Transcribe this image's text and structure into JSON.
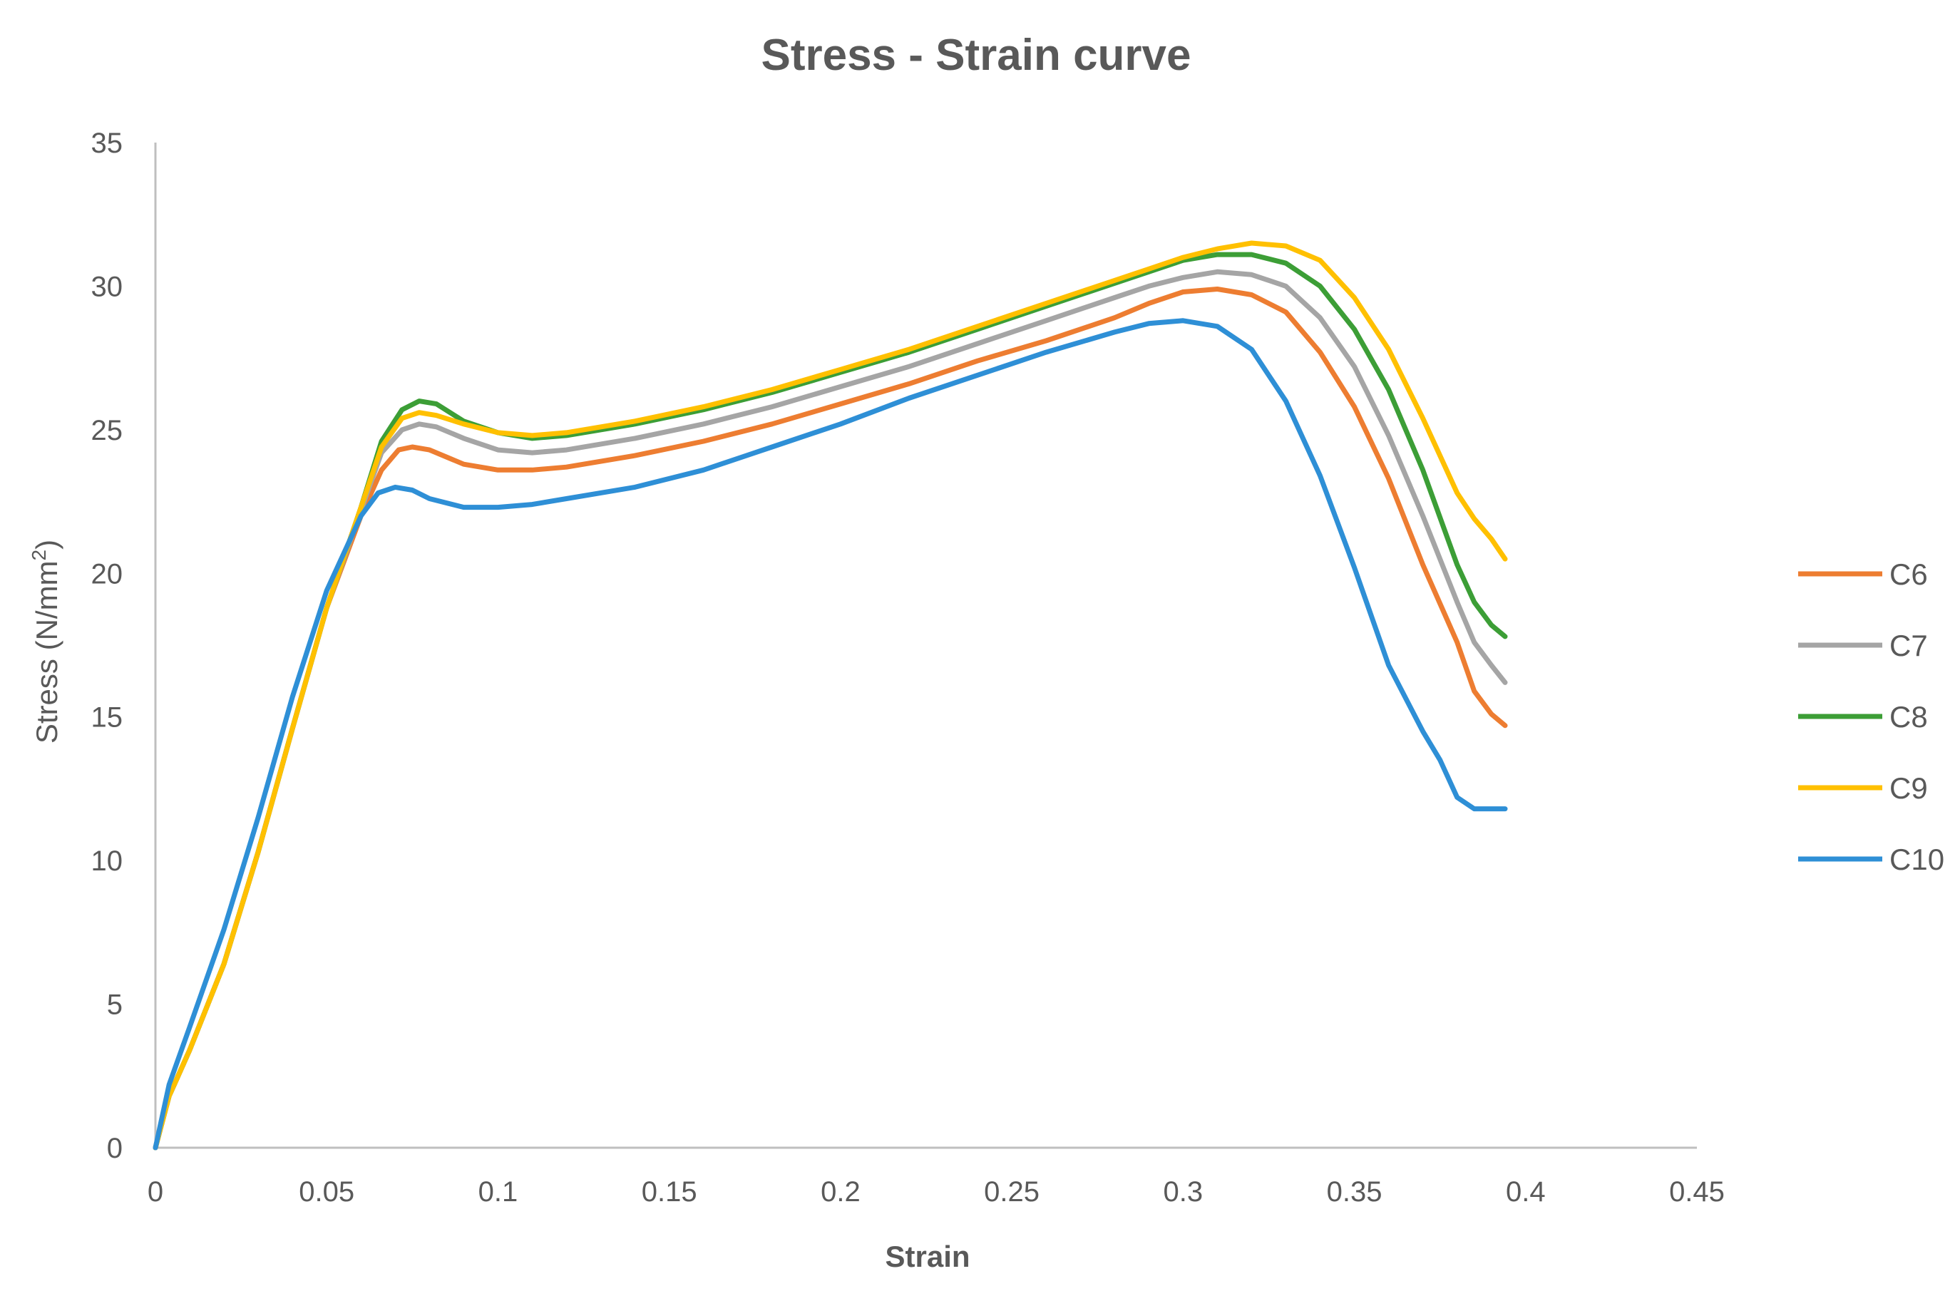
{
  "chart_data": {
    "type": "line",
    "title": "Stress - Strain curve",
    "xlabel": "Strain",
    "ylabel_main": "Stress (N/mm",
    "ylabel_sup": "2",
    "ylabel_close": ")",
    "xlim": [
      0,
      0.45
    ],
    "ylim": [
      0,
      35
    ],
    "x_ticks": [
      "0",
      "0.05",
      "0.1",
      "0.15",
      "0.2",
      "0.25",
      "0.3",
      "0.35",
      "0.4",
      "0.45"
    ],
    "x_tick_values": [
      0,
      0.05,
      0.1,
      0.15,
      0.2,
      0.25,
      0.3,
      0.35,
      0.4,
      0.45
    ],
    "y_ticks": [
      "0",
      "5",
      "10",
      "15",
      "20",
      "25",
      "30",
      "35"
    ],
    "y_tick_values": [
      0,
      5,
      10,
      15,
      20,
      25,
      30,
      35
    ],
    "grid": false,
    "legend_position": "right",
    "series": [
      {
        "name": "C6",
        "color": "#ED7D31",
        "points": [
          [
            0,
            0
          ],
          [
            0.004,
            1.8
          ],
          [
            0.01,
            3.4
          ],
          [
            0.02,
            6.4
          ],
          [
            0.03,
            10.3
          ],
          [
            0.04,
            14.6
          ],
          [
            0.05,
            18.8
          ],
          [
            0.06,
            22.0
          ],
          [
            0.066,
            23.6
          ],
          [
            0.071,
            24.3
          ],
          [
            0.075,
            24.4
          ],
          [
            0.08,
            24.3
          ],
          [
            0.09,
            23.8
          ],
          [
            0.1,
            23.6
          ],
          [
            0.11,
            23.6
          ],
          [
            0.12,
            23.7
          ],
          [
            0.14,
            24.1
          ],
          [
            0.16,
            24.6
          ],
          [
            0.18,
            25.2
          ],
          [
            0.2,
            25.9
          ],
          [
            0.22,
            26.6
          ],
          [
            0.24,
            27.4
          ],
          [
            0.26,
            28.1
          ],
          [
            0.28,
            28.9
          ],
          [
            0.29,
            29.4
          ],
          [
            0.3,
            29.8
          ],
          [
            0.31,
            29.9
          ],
          [
            0.32,
            29.7
          ],
          [
            0.33,
            29.1
          ],
          [
            0.34,
            27.7
          ],
          [
            0.35,
            25.8
          ],
          [
            0.36,
            23.3
          ],
          [
            0.37,
            20.3
          ],
          [
            0.38,
            17.6
          ],
          [
            0.385,
            15.9
          ],
          [
            0.39,
            15.1
          ],
          [
            0.394,
            14.7
          ]
        ]
      },
      {
        "name": "C7",
        "color": "#A5A5A5",
        "points": [
          [
            0,
            0
          ],
          [
            0.004,
            1.8
          ],
          [
            0.01,
            3.4
          ],
          [
            0.02,
            6.4
          ],
          [
            0.03,
            10.3
          ],
          [
            0.04,
            14.6
          ],
          [
            0.05,
            18.8
          ],
          [
            0.06,
            22.2
          ],
          [
            0.066,
            24.2
          ],
          [
            0.072,
            25.0
          ],
          [
            0.077,
            25.2
          ],
          [
            0.082,
            25.1
          ],
          [
            0.09,
            24.7
          ],
          [
            0.1,
            24.3
          ],
          [
            0.11,
            24.2
          ],
          [
            0.12,
            24.3
          ],
          [
            0.14,
            24.7
          ],
          [
            0.16,
            25.2
          ],
          [
            0.18,
            25.8
          ],
          [
            0.2,
            26.5
          ],
          [
            0.22,
            27.2
          ],
          [
            0.24,
            28.0
          ],
          [
            0.26,
            28.8
          ],
          [
            0.28,
            29.6
          ],
          [
            0.29,
            30.0
          ],
          [
            0.3,
            30.3
          ],
          [
            0.31,
            30.5
          ],
          [
            0.32,
            30.4
          ],
          [
            0.33,
            30.0
          ],
          [
            0.34,
            28.9
          ],
          [
            0.35,
            27.2
          ],
          [
            0.36,
            24.8
          ],
          [
            0.37,
            22.0
          ],
          [
            0.38,
            19.0
          ],
          [
            0.385,
            17.6
          ],
          [
            0.39,
            16.8
          ],
          [
            0.394,
            16.2
          ]
        ]
      },
      {
        "name": "C8",
        "color": "#3C9E36",
        "points": [
          [
            0,
            0
          ],
          [
            0.004,
            1.8
          ],
          [
            0.01,
            3.4
          ],
          [
            0.02,
            6.4
          ],
          [
            0.03,
            10.3
          ],
          [
            0.04,
            14.6
          ],
          [
            0.05,
            18.8
          ],
          [
            0.06,
            22.3
          ],
          [
            0.066,
            24.6
          ],
          [
            0.072,
            25.7
          ],
          [
            0.077,
            26.0
          ],
          [
            0.082,
            25.9
          ],
          [
            0.09,
            25.3
          ],
          [
            0.1,
            24.9
          ],
          [
            0.11,
            24.7
          ],
          [
            0.12,
            24.8
          ],
          [
            0.14,
            25.2
          ],
          [
            0.16,
            25.7
          ],
          [
            0.18,
            26.3
          ],
          [
            0.2,
            27.0
          ],
          [
            0.22,
            27.7
          ],
          [
            0.24,
            28.5
          ],
          [
            0.26,
            29.3
          ],
          [
            0.28,
            30.1
          ],
          [
            0.29,
            30.5
          ],
          [
            0.3,
            30.9
          ],
          [
            0.31,
            31.1
          ],
          [
            0.32,
            31.1
          ],
          [
            0.33,
            30.8
          ],
          [
            0.34,
            30.0
          ],
          [
            0.35,
            28.5
          ],
          [
            0.36,
            26.4
          ],
          [
            0.37,
            23.6
          ],
          [
            0.38,
            20.3
          ],
          [
            0.385,
            19.0
          ],
          [
            0.39,
            18.2
          ],
          [
            0.394,
            17.8
          ]
        ]
      },
      {
        "name": "C9",
        "color": "#FFC000",
        "points": [
          [
            0,
            0
          ],
          [
            0.004,
            1.8
          ],
          [
            0.01,
            3.4
          ],
          [
            0.02,
            6.4
          ],
          [
            0.03,
            10.3
          ],
          [
            0.04,
            14.6
          ],
          [
            0.05,
            18.8
          ],
          [
            0.06,
            22.3
          ],
          [
            0.066,
            24.4
          ],
          [
            0.072,
            25.4
          ],
          [
            0.077,
            25.6
          ],
          [
            0.082,
            25.5
          ],
          [
            0.09,
            25.2
          ],
          [
            0.1,
            24.9
          ],
          [
            0.11,
            24.8
          ],
          [
            0.12,
            24.9
          ],
          [
            0.14,
            25.3
          ],
          [
            0.16,
            25.8
          ],
          [
            0.18,
            26.4
          ],
          [
            0.2,
            27.1
          ],
          [
            0.22,
            27.8
          ],
          [
            0.24,
            28.6
          ],
          [
            0.26,
            29.4
          ],
          [
            0.28,
            30.2
          ],
          [
            0.29,
            30.6
          ],
          [
            0.3,
            31.0
          ],
          [
            0.31,
            31.3
          ],
          [
            0.32,
            31.5
          ],
          [
            0.33,
            31.4
          ],
          [
            0.34,
            30.9
          ],
          [
            0.35,
            29.6
          ],
          [
            0.36,
            27.8
          ],
          [
            0.37,
            25.4
          ],
          [
            0.38,
            22.8
          ],
          [
            0.385,
            21.9
          ],
          [
            0.39,
            21.2
          ],
          [
            0.394,
            20.5
          ]
        ]
      },
      {
        "name": "C10",
        "color": "#2E8FD6",
        "points": [
          [
            0,
            0
          ],
          [
            0.004,
            2.2
          ],
          [
            0.01,
            4.2
          ],
          [
            0.02,
            7.6
          ],
          [
            0.03,
            11.5
          ],
          [
            0.04,
            15.7
          ],
          [
            0.05,
            19.4
          ],
          [
            0.06,
            22.0
          ],
          [
            0.065,
            22.8
          ],
          [
            0.07,
            23.0
          ],
          [
            0.075,
            22.9
          ],
          [
            0.08,
            22.6
          ],
          [
            0.09,
            22.3
          ],
          [
            0.1,
            22.3
          ],
          [
            0.11,
            22.4
          ],
          [
            0.12,
            22.6
          ],
          [
            0.14,
            23.0
          ],
          [
            0.16,
            23.6
          ],
          [
            0.18,
            24.4
          ],
          [
            0.2,
            25.2
          ],
          [
            0.22,
            26.1
          ],
          [
            0.24,
            26.9
          ],
          [
            0.26,
            27.7
          ],
          [
            0.28,
            28.4
          ],
          [
            0.29,
            28.7
          ],
          [
            0.3,
            28.8
          ],
          [
            0.31,
            28.6
          ],
          [
            0.32,
            27.8
          ],
          [
            0.33,
            26.0
          ],
          [
            0.34,
            23.4
          ],
          [
            0.35,
            20.2
          ],
          [
            0.36,
            16.8
          ],
          [
            0.37,
            14.5
          ],
          [
            0.375,
            13.5
          ],
          [
            0.38,
            12.2
          ],
          [
            0.385,
            11.8
          ],
          [
            0.394,
            11.8
          ]
        ]
      }
    ]
  }
}
